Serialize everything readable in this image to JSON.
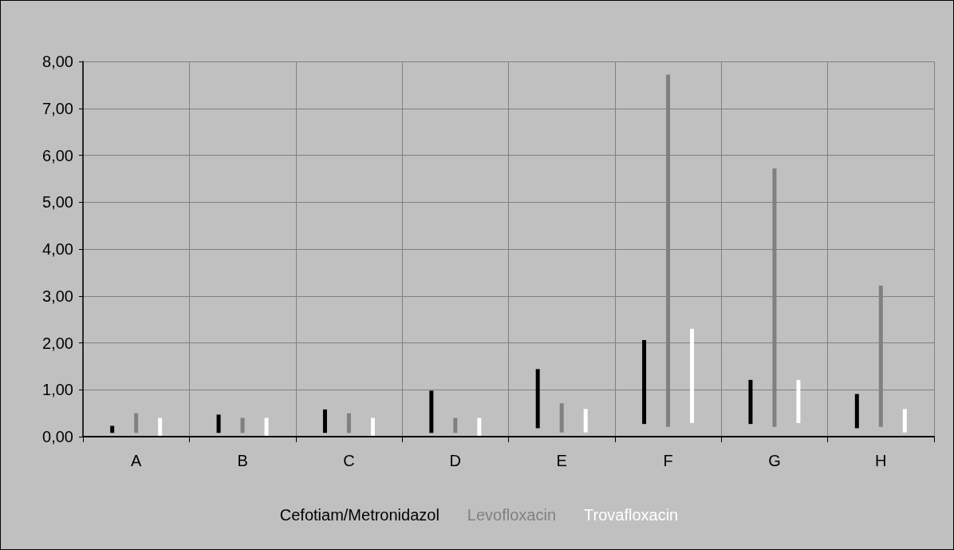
{
  "chart_data": {
    "type": "bar",
    "categories": [
      "A",
      "B",
      "C",
      "D",
      "E",
      "F",
      "G",
      "H"
    ],
    "series": [
      {
        "name": "Cefotiam/Metronidazol",
        "color": "#000000",
        "base": [
          0.08,
          0.08,
          0.08,
          0.08,
          0.18,
          0.27,
          0.27,
          0.18
        ],
        "values": [
          0.15,
          0.39,
          0.5,
          0.9,
          1.26,
          1.79,
          0.94,
          0.73
        ]
      },
      {
        "name": "Levofloxacin",
        "color": "#808080",
        "base": [
          0.08,
          0.08,
          0.08,
          0.08,
          0.09,
          0.21,
          0.21,
          0.21
        ],
        "values": [
          0.42,
          0.32,
          0.42,
          0.32,
          0.62,
          7.51,
          5.51,
          3.01
        ]
      },
      {
        "name": "Trovafloxacin",
        "color": "#ffffff",
        "base": [
          0.02,
          0.02,
          0.02,
          0.02,
          0.09,
          0.29,
          0.29,
          0.09
        ],
        "values": [
          0.38,
          0.38,
          0.38,
          0.38,
          0.5,
          2.01,
          0.92,
          0.5
        ]
      }
    ],
    "ylim": [
      0,
      8
    ],
    "yticks": [
      {
        "value": 0,
        "label": "0,00"
      },
      {
        "value": 1,
        "label": "1,00"
      },
      {
        "value": 2,
        "label": "2,00"
      },
      {
        "value": 3,
        "label": "3,00"
      },
      {
        "value": 4,
        "label": "4,00"
      },
      {
        "value": 5,
        "label": "5,00"
      },
      {
        "value": 6,
        "label": "6,00"
      },
      {
        "value": 7,
        "label": "7,00"
      },
      {
        "value": 8,
        "label": "8,00"
      }
    ],
    "grid": true,
    "legend": "bottom"
  }
}
